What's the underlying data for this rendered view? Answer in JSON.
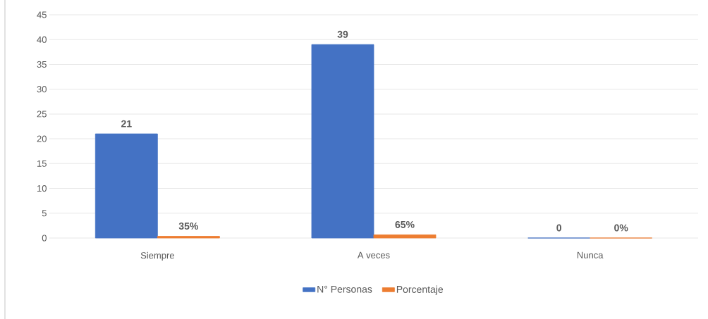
{
  "chart_data": {
    "type": "bar",
    "categories": [
      "Siempre",
      "A veces",
      "Nunca"
    ],
    "series": [
      {
        "name": "N° Personas",
        "color": "#4472c4",
        "values": [
          21,
          39,
          0
        ],
        "value_labels": [
          "21",
          "39",
          "0"
        ]
      },
      {
        "name": "Porcentaje",
        "color": "#ed7d31",
        "values": [
          0.35,
          0.65,
          0
        ],
        "value_labels": [
          "35%",
          "65%",
          "0%"
        ]
      }
    ],
    "ylim": [
      0,
      45
    ],
    "yticks": [
      0,
      5,
      10,
      15,
      20,
      25,
      30,
      35,
      40,
      45
    ],
    "grid": "y",
    "legend": "bottom"
  }
}
